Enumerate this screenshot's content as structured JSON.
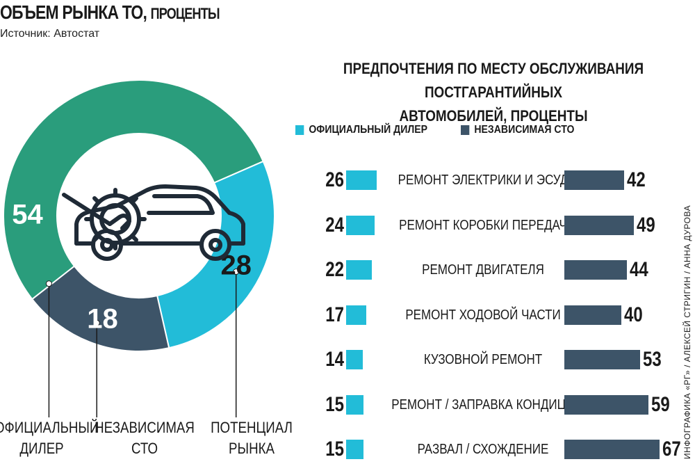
{
  "header": {
    "title_main": "ОБЪЕМ РЫНКА ТО,",
    "title_unit": "ПРОЦЕНТЫ",
    "source": "Источник: Автостат"
  },
  "colors": {
    "dealer": "#2a9d7c",
    "independent": "#22bcd8",
    "potential": "#3d5468"
  },
  "icon": "car-with-gear-and-wrench-icon",
  "chart_data": [
    {
      "type": "pie",
      "variant": "donut",
      "title": "ОБЪЕМ РЫНКА ТО, ПРОЦЕНТЫ",
      "categories": [
        "ОФИЦИАЛЬНЫЙ ДИЛЕР",
        "НЕЗАВИСИМАЯ СТО",
        "ПОТЕНЦИАЛ РЫНКА"
      ],
      "values": [
        54,
        28,
        18
      ],
      "labels": [
        "54",
        "28",
        "18"
      ],
      "bottom_labels": [
        [
          "ОФИЦИАЛЬНЫЙ",
          "ДИЛЕР"
        ],
        [
          "НЕЗАВИСИМАЯ",
          "СТО"
        ],
        [
          "ПОТЕНЦИАЛ",
          "РЫНКА"
        ]
      ]
    },
    {
      "type": "bar",
      "orientation": "horizontal-butterfly",
      "title_line1": "ПРЕДПОЧТЕНИЯ ПО МЕСТУ ОБСЛУЖИВАНИЯ ПОСТГАРАНТИЙНЫХ",
      "title_line2": "АВТОМОБИЛЕЙ, ПРОЦЕНТЫ",
      "legend": [
        "ОФИЦИАЛЬНЫЙ ДИЛЕР",
        "НЕЗАВИСИМАЯ СТО"
      ],
      "categories": [
        "РЕМОНТ ЭЛЕКТРИКИ И ЭСУД",
        "РЕМОНТ КОРОБКИ ПЕРЕДАЧ",
        "РЕМОНТ ДВИГАТЕЛЯ",
        "РЕМОНТ ХОДОВОЙ ЧАСТИ",
        "КУЗОВНОЙ РЕМОНТ",
        "РЕМОНТ / ЗАПРАВКА КОНДИЦИОНЕРА",
        "РАЗВАЛ / СХОЖДЕНИЕ"
      ],
      "series": [
        {
          "name": "ОФИЦИАЛЬНЫЙ ДИЛЕР",
          "values": [
            26,
            24,
            22,
            17,
            14,
            15,
            15
          ]
        },
        {
          "name": "НЕЗАВИСИМАЯ СТО",
          "values": [
            42,
            49,
            44,
            40,
            53,
            59,
            67
          ]
        }
      ]
    }
  ],
  "credit": "ИНФОГРАФИКА «РГ» / АЛЕКСЕЙ СТРИГИН / АННА ДУРОВА"
}
